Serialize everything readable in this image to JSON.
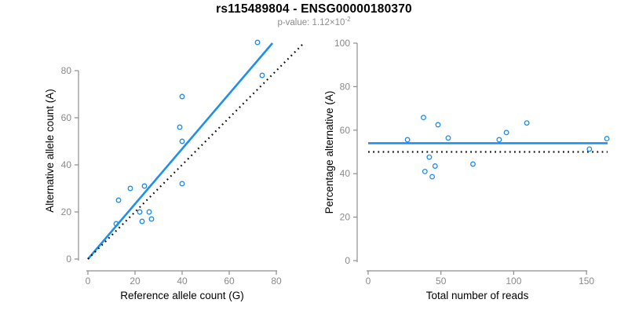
{
  "header": {
    "title": "rs115489804 - ENSG00000180370",
    "pvalue_prefix": "p-value: 1.12×10",
    "pvalue_exponent": "-2"
  },
  "colors": {
    "accent_blue": "#1E8FEC",
    "line_black": "#111111",
    "axis_gray": "#8e8e8e",
    "tick_label_gray": "#8a8a8a",
    "label_black": "#000000",
    "background": "#ffffff"
  },
  "chart_data": [
    {
      "type": "scatter",
      "name": "allele-counts",
      "xlabel": "Reference allele count (G)",
      "ylabel": "Alternative allele count (A)",
      "xticks": [
        0,
        20,
        40,
        60,
        80
      ],
      "yticks": [
        0,
        20,
        40,
        60,
        80
      ],
      "xlim": [
        0,
        93
      ],
      "ylim": [
        0,
        92
      ],
      "grid": false,
      "legend": "none",
      "points": [
        [
          12,
          15
        ],
        [
          13,
          25
        ],
        [
          18,
          30
        ],
        [
          22,
          20
        ],
        [
          23,
          16
        ],
        [
          24,
          31
        ],
        [
          26,
          20
        ],
        [
          27,
          17
        ],
        [
          39,
          56
        ],
        [
          40,
          32
        ],
        [
          40,
          50
        ],
        [
          40,
          69
        ],
        [
          72,
          92
        ],
        [
          74,
          78
        ]
      ],
      "lines": [
        {
          "kind": "regression-fit",
          "style": "solid",
          "color_key": "blue",
          "slope": 1.17,
          "intercept": 0
        },
        {
          "kind": "identity-reference",
          "style": "dotted",
          "color_key": "black",
          "slope": 1,
          "intercept": 0
        }
      ]
    },
    {
      "type": "scatter",
      "name": "percentage-alternative",
      "xlabel": "Total number of reads",
      "ylabel": "Percentage alternative (A)",
      "xticks": [
        0,
        50,
        100,
        150
      ],
      "yticks": [
        0,
        20,
        40,
        60,
        80,
        100
      ],
      "xlim": [
        0,
        165
      ],
      "ylim": [
        0,
        100
      ],
      "grid": false,
      "legend": "none",
      "points": [
        [
          27,
          55.6
        ],
        [
          38,
          65.8
        ],
        [
          48,
          62.5
        ],
        [
          42,
          47.6
        ],
        [
          39,
          41.0
        ],
        [
          55,
          56.4
        ],
        [
          46,
          43.5
        ],
        [
          44,
          38.6
        ],
        [
          95,
          58.9
        ],
        [
          72,
          44.4
        ],
        [
          90,
          55.6
        ],
        [
          109,
          63.3
        ],
        [
          164,
          56.1
        ],
        [
          152,
          51.3
        ]
      ],
      "lines": [
        {
          "kind": "mean-fit",
          "style": "solid",
          "color_key": "blue",
          "value": 54.0
        },
        {
          "kind": "null-expectation",
          "style": "dotted",
          "color_key": "black",
          "value": 50
        }
      ]
    }
  ]
}
